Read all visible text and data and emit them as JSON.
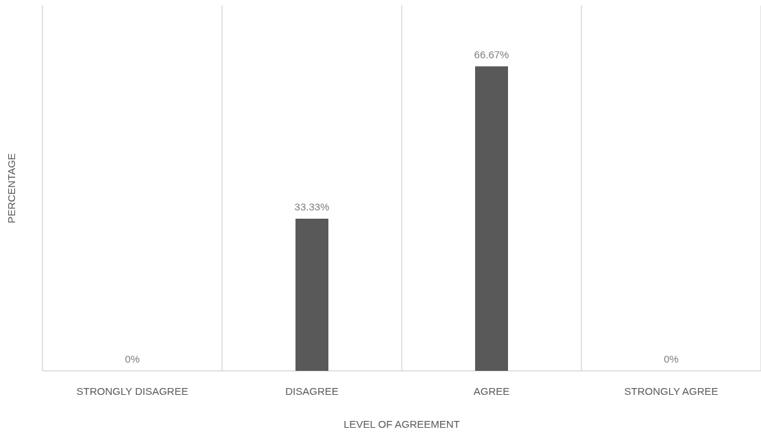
{
  "chart_data": {
    "type": "bar",
    "xlabel": "LEVEL OF AGREEMENT",
    "ylabel": "PERCENTAGE",
    "categories": [
      "STRONGLY DISAGREE",
      "DISAGREE",
      "AGREE",
      "STRONGLY AGREE"
    ],
    "values": [
      0,
      33.33,
      66.67,
      0
    ],
    "value_labels": [
      "0%",
      "33.33%",
      "66.67%",
      "0%"
    ],
    "color": "#595959",
    "ylim": [
      0,
      80
    ],
    "grid": "x"
  }
}
